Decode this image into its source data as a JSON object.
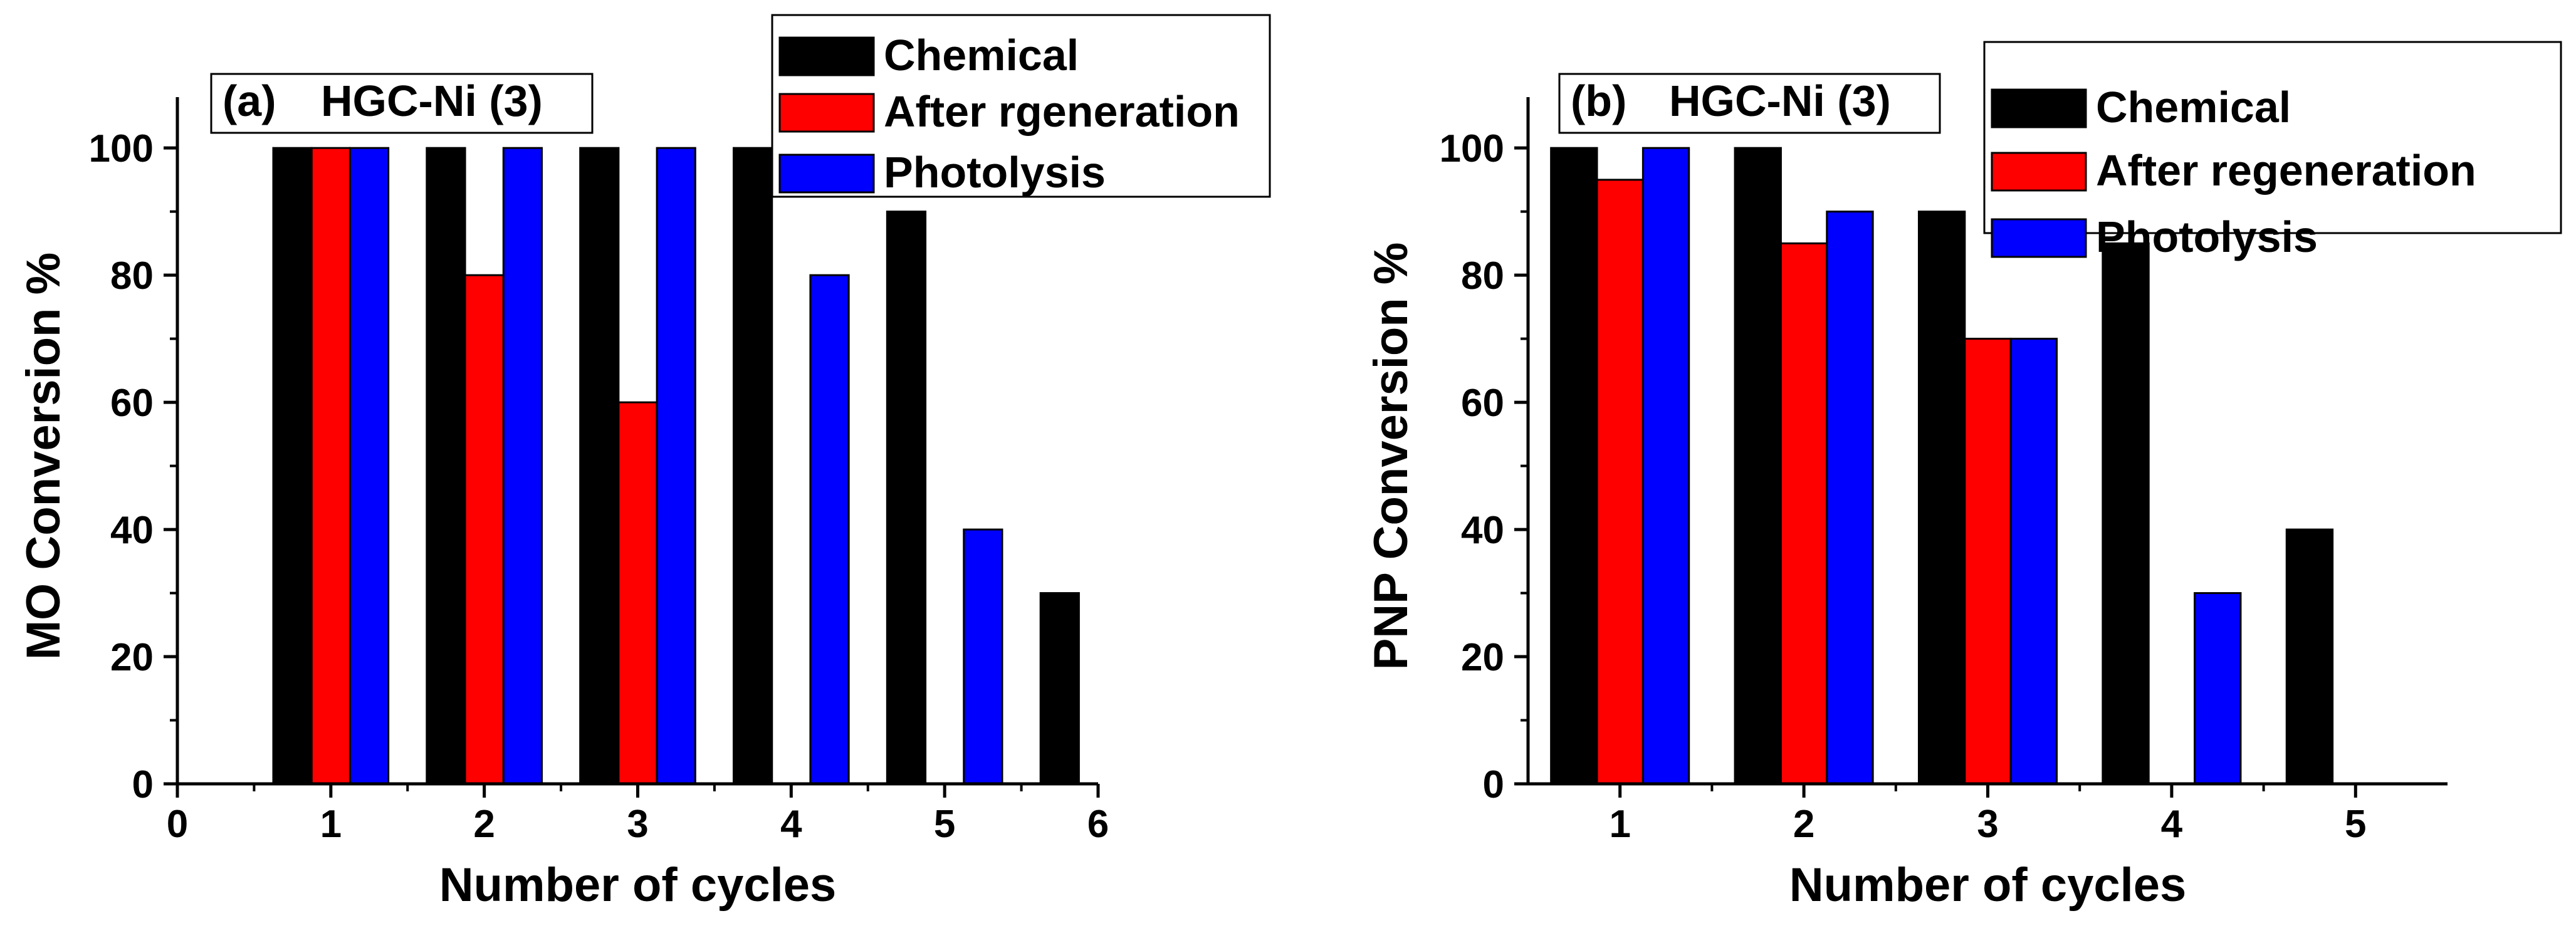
{
  "chart_data": [
    {
      "type": "bar",
      "panel_label": "(a)",
      "title": "HGC-Ni (3)",
      "xlabel": "Number of cycles",
      "ylabel": "MO Conversion %",
      "xlim": [
        0,
        6
      ],
      "ylim": [
        0,
        108
      ],
      "x_ticks": [
        "0",
        "1",
        "2",
        "3",
        "4",
        "5",
        "6"
      ],
      "y_ticks": [
        "0",
        "20",
        "40",
        "60",
        "80",
        "100"
      ],
      "legend_position": "top-right",
      "series": [
        {
          "name": "Chemical",
          "color": "#000000",
          "x": [
            0.75,
            1.75,
            2.75,
            3.75,
            4.75,
            5.75
          ],
          "values": [
            100,
            100,
            100,
            100,
            90,
            30
          ]
        },
        {
          "name": "After rgeneration",
          "color": "#ff0000",
          "x": [
            1,
            2,
            3
          ],
          "values": [
            100,
            80,
            60
          ]
        },
        {
          "name": "Photolysis",
          "color": "#0000ff",
          "x": [
            1.25,
            2.25,
            3.25,
            4.25,
            5.25
          ],
          "values": [
            100,
            100,
            100,
            80,
            40
          ]
        }
      ]
    },
    {
      "type": "bar",
      "panel_label": "(b)",
      "title": "HGC-Ni (3)",
      "xlabel": "Number of cycles",
      "ylabel": "PNP Conversion %",
      "xlim": [
        0.5,
        5.5
      ],
      "ylim": [
        0,
        108
      ],
      "x_ticks": [
        "1",
        "2",
        "3",
        "4",
        "5"
      ],
      "y_ticks": [
        "0",
        "20",
        "40",
        "60",
        "80",
        "100"
      ],
      "legend_position": "top-right",
      "series": [
        {
          "name": "Chemical",
          "color": "#000000",
          "x": [
            0.75,
            1.75,
            2.75,
            3.75,
            4.75
          ],
          "values": [
            100,
            100,
            90,
            85,
            40
          ]
        },
        {
          "name": "After regeneration",
          "color": "#ff0000",
          "x": [
            1,
            2,
            3
          ],
          "values": [
            95,
            85,
            70
          ]
        },
        {
          "name": "Photolysis",
          "color": "#0000ff",
          "x": [
            1.25,
            2.25,
            3.25,
            4.25
          ],
          "values": [
            100,
            90,
            70,
            30
          ]
        }
      ]
    }
  ]
}
